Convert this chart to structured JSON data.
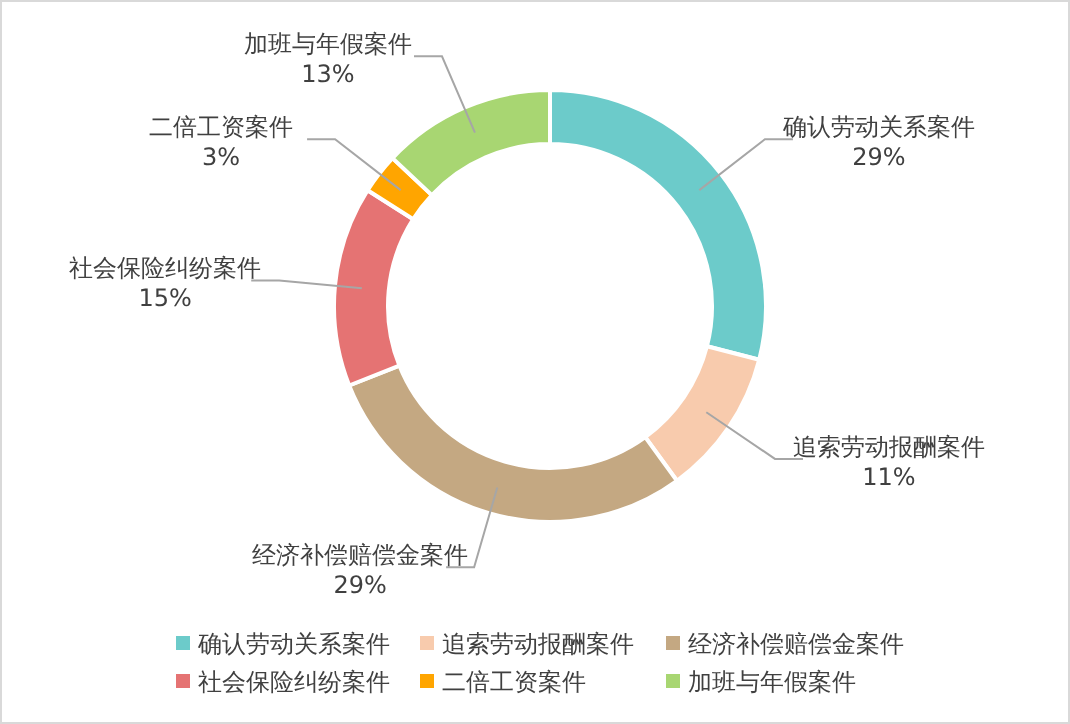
{
  "chart_data": {
    "type": "donut",
    "categories": [
      "确认劳动关系案件",
      "追索劳动报酬案件",
      "经济补偿赔偿金案件",
      "社会保险纠纷案件",
      "二倍工资案件",
      "加班与年假案件"
    ],
    "values": [
      29,
      11,
      29,
      15,
      3,
      13
    ],
    "colors": [
      "#6ccbca",
      "#f8cbad",
      "#c4a882",
      "#e57373",
      "#ffa500",
      "#a8d672"
    ],
    "value_labels": [
      "29%",
      "11%",
      "29%",
      "15%",
      "3%",
      "13%"
    ],
    "legend": "bottom"
  }
}
